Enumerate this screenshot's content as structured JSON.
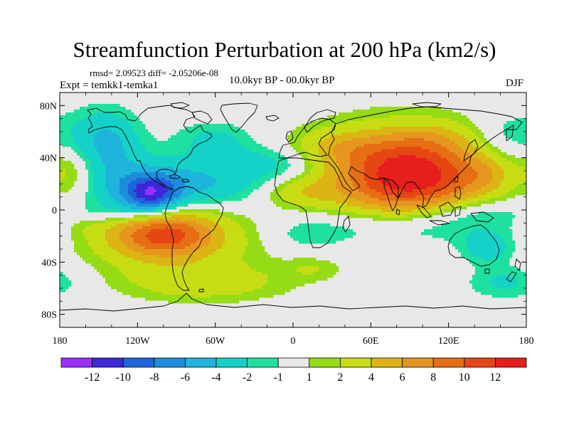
{
  "title": "Streamfunction Perturbation at 200 hPa (km2/s)",
  "stats_text": "rmsd= 2.09523 diff= -2.05206e-08",
  "experiment_text": "Expt = temkk1-temka1",
  "period_text": "10.0kyr BP - 00.0kyr BP",
  "season_text": "DJF",
  "map": {
    "projection": "cylindrical-equidistant",
    "lon_range": [
      -180,
      180
    ],
    "lat_range": [
      -90,
      90
    ],
    "lat_ticks": [
      {
        "value": 80,
        "label": "80N"
      },
      {
        "value": 40,
        "label": "40N"
      },
      {
        "value": 0,
        "label": "0"
      },
      {
        "value": -40,
        "label": "40S"
      },
      {
        "value": -80,
        "label": "80S"
      }
    ],
    "lon_ticks": [
      {
        "value": -180,
        "label": "180"
      },
      {
        "value": -120,
        "label": "120W"
      },
      {
        "value": -60,
        "label": "60W"
      },
      {
        "value": 0,
        "label": "0"
      },
      {
        "value": 60,
        "label": "60E"
      },
      {
        "value": 120,
        "label": "120E"
      },
      {
        "value": 180,
        "label": "180"
      }
    ],
    "background_color": "#e8e8e8",
    "coastline_color": "#000000"
  },
  "colorbar": {
    "colors": [
      "#9b30ff",
      "#3c28d8",
      "#1e64dc",
      "#1e8cdc",
      "#1eb4dc",
      "#14d2c8",
      "#1ee0a0",
      "#e8e8e8",
      "#96dc14",
      "#c8dc14",
      "#dcb414",
      "#e6961e",
      "#e66e14",
      "#e64614",
      "#e61e1e"
    ],
    "labels": [
      "-12",
      "-10",
      "-8",
      "-6",
      "-4",
      "-2",
      "-1",
      "1",
      "2",
      "4",
      "6",
      "8",
      "10",
      "12"
    ]
  },
  "chart_data": {
    "type": "heatmap",
    "title": "Streamfunction Perturbation at 200 hPa (km2/s)",
    "xlabel": "",
    "ylabel": "",
    "xlim": [
      -180,
      180
    ],
    "ylim": [
      -90,
      90
    ],
    "contour_levels": [
      -12,
      -10,
      -8,
      -6,
      -4,
      -2,
      -1,
      1,
      2,
      4,
      6,
      8,
      10,
      12
    ],
    "features": [
      {
        "lon": 90,
        "lat": 27,
        "value": 11,
        "sx": 38,
        "sy": 20
      },
      {
        "lon": 85,
        "lat": 25,
        "value": 3.5,
        "sx": 62,
        "sy": 30
      },
      {
        "lon": -100,
        "lat": -18,
        "value": 9,
        "sx": 28,
        "sy": 13
      },
      {
        "lon": -92,
        "lat": -20,
        "value": 3,
        "sx": 55,
        "sy": 20
      },
      {
        "lon": -110,
        "lat": 12,
        "value": -8.5,
        "sx": 15,
        "sy": 10
      },
      {
        "lon": -115,
        "lat": 14,
        "value": -3.5,
        "sx": 45,
        "sy": 16
      },
      {
        "lon": -60,
        "lat": 22,
        "value": -3,
        "sx": 55,
        "sy": 13
      },
      {
        "lon": -140,
        "lat": 50,
        "value": -3.5,
        "sx": 17,
        "sy": 18
      },
      {
        "lon": -160,
        "lat": 55,
        "value": -2,
        "sx": 20,
        "sy": 16
      },
      {
        "lon": -60,
        "lat": 54,
        "value": -2.5,
        "sx": 22,
        "sy": 10
      },
      {
        "lon": -12,
        "lat": 38,
        "value": -2.2,
        "sx": 25,
        "sy": 9
      },
      {
        "lon": 100,
        "lat": -12,
        "value": -3.5,
        "sx": 70,
        "sy": 11
      },
      {
        "lon": 135,
        "lat": 0,
        "value": -2,
        "sx": 28,
        "sy": 8
      },
      {
        "lon": -140,
        "lat": -3,
        "value": -2,
        "sx": 25,
        "sy": 6
      },
      {
        "lon": 5,
        "lat": 14,
        "value": 3,
        "sx": 22,
        "sy": 8
      },
      {
        "lon": 35,
        "lat": 48,
        "value": 2.6,
        "sx": 25,
        "sy": 9
      },
      {
        "lon": -68,
        "lat": -56,
        "value": 3,
        "sx": 45,
        "sy": 10
      },
      {
        "lon": -160,
        "lat": -10,
        "value": 1.8,
        "sx": 20,
        "sy": 8
      },
      {
        "lon": -170,
        "lat": 28,
        "value": 2.6,
        "sx": 12,
        "sy": 14
      },
      {
        "lon": 150,
        "lat": -30,
        "value": -3.2,
        "sx": 15,
        "sy": 8
      },
      {
        "lon": 165,
        "lat": -55,
        "value": -2.5,
        "sx": 22,
        "sy": 9
      },
      {
        "lon": 160,
        "lat": 55,
        "value": -2.2,
        "sx": 18,
        "sy": 14
      },
      {
        "lon": 150,
        "lat": 28,
        "value": 2.2,
        "sx": 14,
        "sy": 10
      },
      {
        "lon": 105,
        "lat": 55,
        "value": 1.6,
        "sx": 25,
        "sy": 8
      },
      {
        "lon": 10,
        "lat": -20,
        "value": -1.6,
        "sx": 22,
        "sy": 9
      },
      {
        "lon": 15,
        "lat": -45,
        "value": 1.6,
        "sx": 15,
        "sy": 6
      }
    ]
  }
}
